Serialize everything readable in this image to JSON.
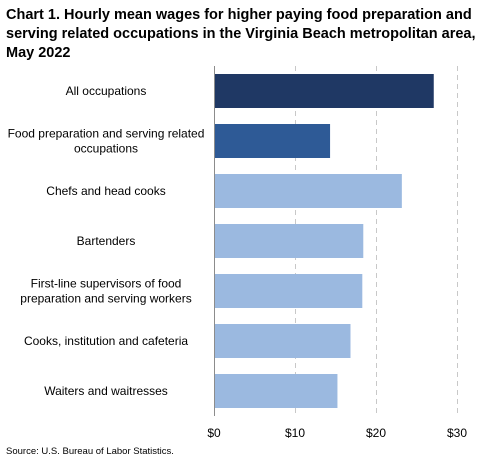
{
  "chart_data": {
    "type": "bar",
    "orientation": "horizontal",
    "title": "Chart 1. Hourly mean wages for higher paying food preparation and serving related occupations in the Virginia Beach metropolitan area, May 2022",
    "categories": [
      [
        "All occupations"
      ],
      [
        "Food preparation and serving related",
        "occupations"
      ],
      [
        "Chefs and head cooks"
      ],
      [
        "Bartenders"
      ],
      [
        "First-line supervisors of food",
        "preparation and serving workers"
      ],
      [
        "Cooks, institution and cafeteria"
      ],
      [
        "Waiters and waitresses"
      ]
    ],
    "values": [
      27.13,
      14.33,
      23.19,
      18.43,
      18.31,
      16.85,
      15.24
    ],
    "colors": [
      "#1f3864",
      "#2e5a96",
      "#9bb9e0",
      "#9bb9e0",
      "#9bb9e0",
      "#9bb9e0",
      "#9bb9e0"
    ],
    "xlim": [
      0,
      30
    ],
    "xticks": [
      0,
      10,
      20,
      30
    ],
    "xtick_labels": [
      "$0",
      "$10",
      "$20",
      "$30"
    ],
    "grid": true,
    "source": "Source: U.S. Bureau of Labor Statistics."
  }
}
